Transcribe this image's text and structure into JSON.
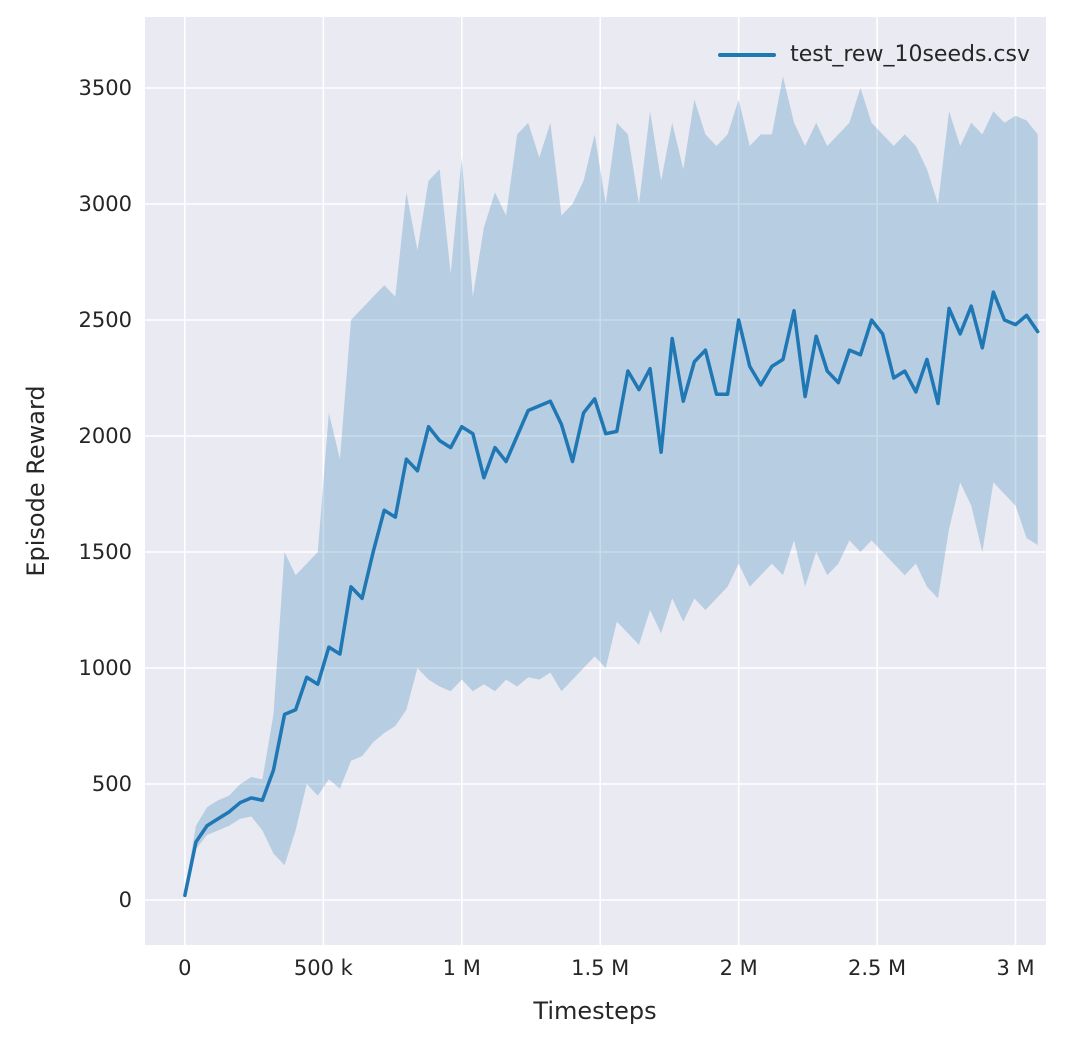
{
  "figure": {
    "background": "#ffffff"
  },
  "chart_data": {
    "type": "line",
    "title": "",
    "xlabel": "Timesteps",
    "ylabel": "Episode Reward",
    "legend_position": "upper right",
    "grid": true,
    "plot_bg": "#eaeaf2",
    "grid_color": "#ffffff",
    "tick_color": "#262626",
    "xlim": [
      -144000,
      3110000
    ],
    "ylim": [
      -194,
      3806
    ],
    "x_ticks": [
      {
        "value": 0,
        "label": "0"
      },
      {
        "value": 500000,
        "label": "500 k"
      },
      {
        "value": 1000000,
        "label": "1 M"
      },
      {
        "value": 1500000,
        "label": "1.5 M"
      },
      {
        "value": 2000000,
        "label": "2 M"
      },
      {
        "value": 2500000,
        "label": "2.5 M"
      },
      {
        "value": 3000000,
        "label": "3 M"
      }
    ],
    "y_ticks": [
      {
        "value": 0,
        "label": "0"
      },
      {
        "value": 500,
        "label": "500"
      },
      {
        "value": 1000,
        "label": "1000"
      },
      {
        "value": 1500,
        "label": "1500"
      },
      {
        "value": 2000,
        "label": "2000"
      },
      {
        "value": 2500,
        "label": "2500"
      },
      {
        "value": 3000,
        "label": "3000"
      },
      {
        "value": 3500,
        "label": "3500"
      }
    ],
    "series": [
      {
        "name": "test_rew_10seeds.csv",
        "color": "#1f77b4",
        "band_opacity": 0.25,
        "x": [
          0,
          40000,
          80000,
          120000,
          160000,
          200000,
          240000,
          280000,
          320000,
          360000,
          400000,
          440000,
          480000,
          520000,
          560000,
          600000,
          640000,
          680000,
          720000,
          760000,
          800000,
          840000,
          880000,
          920000,
          960000,
          1000000,
          1040000,
          1080000,
          1120000,
          1160000,
          1200000,
          1240000,
          1280000,
          1320000,
          1360000,
          1400000,
          1440000,
          1480000,
          1520000,
          1560000,
          1600000,
          1640000,
          1680000,
          1720000,
          1760000,
          1800000,
          1840000,
          1880000,
          1920000,
          1960000,
          2000000,
          2040000,
          2080000,
          2120000,
          2160000,
          2200000,
          2240000,
          2280000,
          2320000,
          2360000,
          2400000,
          2440000,
          2480000,
          2520000,
          2560000,
          2600000,
          2640000,
          2680000,
          2720000,
          2760000,
          2800000,
          2840000,
          2880000,
          2920000,
          2960000,
          3000000,
          3040000,
          3080000
        ],
        "mean": [
          20,
          250,
          320,
          350,
          380,
          420,
          440,
          430,
          560,
          800,
          820,
          960,
          930,
          1090,
          1060,
          1350,
          1300,
          1500,
          1680,
          1650,
          1900,
          1850,
          2040,
          1980,
          1950,
          2040,
          2010,
          1820,
          1950,
          1890,
          2000,
          2110,
          2130,
          2150,
          2050,
          1890,
          2100,
          2160,
          2010,
          2020,
          2280,
          2200,
          2290,
          1930,
          2420,
          2150,
          2320,
          2370,
          2180,
          2180,
          2500,
          2300,
          2220,
          2300,
          2330,
          2540,
          2170,
          2430,
          2280,
          2230,
          2370,
          2350,
          2500,
          2440,
          2250,
          2280,
          2190,
          2330,
          2140,
          2550,
          2440,
          2560,
          2380,
          2620,
          2500,
          2480,
          2520,
          2450
        ],
        "lower": [
          10,
          220,
          280,
          300,
          320,
          350,
          360,
          300,
          200,
          150,
          300,
          500,
          450,
          520,
          480,
          600,
          620,
          680,
          720,
          750,
          820,
          1000,
          950,
          920,
          900,
          950,
          900,
          930,
          900,
          950,
          920,
          960,
          950,
          980,
          900,
          950,
          1000,
          1050,
          1000,
          1200,
          1150,
          1100,
          1250,
          1150,
          1300,
          1200,
          1300,
          1250,
          1300,
          1350,
          1450,
          1350,
          1400,
          1450,
          1400,
          1550,
          1350,
          1500,
          1400,
          1450,
          1550,
          1500,
          1550,
          1500,
          1450,
          1400,
          1450,
          1350,
          1300,
          1600,
          1800,
          1700,
          1500,
          1800,
          1750,
          1700,
          1560,
          1530
        ],
        "upper": [
          40,
          320,
          400,
          430,
          450,
          500,
          530,
          520,
          800,
          1500,
          1400,
          1450,
          1500,
          2100,
          1900,
          2500,
          2550,
          2600,
          2650,
          2600,
          3050,
          2800,
          3100,
          3150,
          2700,
          3200,
          2600,
          2900,
          3050,
          2950,
          3300,
          3350,
          3200,
          3350,
          2950,
          3000,
          3100,
          3300,
          3000,
          3350,
          3300,
          3000,
          3400,
          3100,
          3350,
          3150,
          3450,
          3300,
          3250,
          3300,
          3450,
          3250,
          3300,
          3300,
          3550,
          3350,
          3250,
          3350,
          3250,
          3300,
          3350,
          3500,
          3350,
          3300,
          3250,
          3300,
          3250,
          3150,
          3000,
          3400,
          3250,
          3350,
          3300,
          3400,
          3350,
          3380,
          3360,
          3300
        ]
      }
    ],
    "legend": [
      {
        "label": "test_rew_10seeds.csv",
        "color": "#1f77b4"
      }
    ]
  }
}
